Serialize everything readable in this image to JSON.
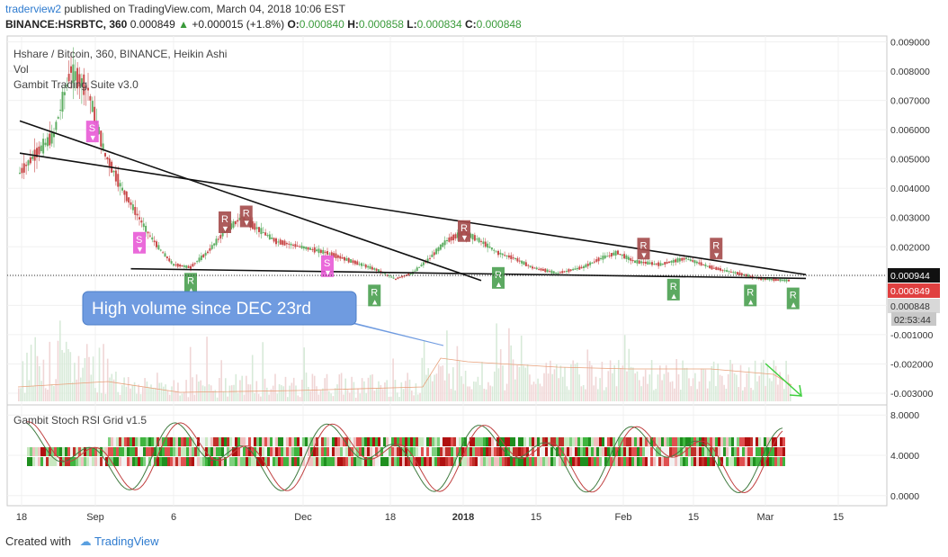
{
  "header": {
    "user": "traderview2",
    "published": "published on TradingView.com, March 04, 2018 10:06 EST",
    "symbol": "BINANCE:HSRBTC, 360",
    "change_price": "0.000849",
    "change_value": "+0.000015 (+1.8%)",
    "o_label": "O:",
    "o": "0.000840",
    "h_label": "H:",
    "h": "0.000858",
    "l_label": "L:",
    "l": "0.000834",
    "c_label": "C:",
    "c": "0.000848"
  },
  "legend": {
    "line1": "Hshare / Bitcoin, 360, BINANCE, Heikin Ashi",
    "line2": "Vol",
    "line3": "Gambit Trading Suite v3.0",
    "stoch": "Gambit Stoch RSI Grid v1.5"
  },
  "annotation": {
    "text": "High volume since DEC 23rd"
  },
  "footer": {
    "created": "Created with",
    "brand": "TradingView"
  },
  "colors": {
    "up": "#5fae63",
    "down": "#c94a4a",
    "pink": "#e85ad6",
    "badge_up": "#4aa050",
    "badge_down": "#a44a4a",
    "callout": "#6f9be0"
  },
  "chart_data": [
    {
      "type": "candlestick",
      "title": "Hshare / Bitcoin, 360, BINANCE, Heikin Ashi",
      "y_ticks": [
        "0.009000",
        "0.008000",
        "0.007000",
        "0.006000",
        "0.005000",
        "0.004000",
        "0.003000",
        "0.002000",
        "0.000944",
        "0.000849",
        "0.000848",
        "-0.001000",
        "-0.002000",
        "-0.003000"
      ],
      "x_ticks": [
        "18",
        "Sep",
        "6",
        "Dec",
        "18",
        "2018",
        "15",
        "Feb",
        "15",
        "Mar",
        "15"
      ],
      "countdown": "02:53:44",
      "ylim": [
        -0.0034,
        0.0091
      ],
      "price_path": [
        [
          0,
          0.0045
        ],
        [
          4,
          0.0052
        ],
        [
          8,
          0.0058
        ],
        [
          12,
          0.008
        ],
        [
          16,
          0.0074
        ],
        [
          20,
          0.0052
        ],
        [
          24,
          0.004
        ],
        [
          28,
          0.003
        ],
        [
          30,
          0.0025
        ],
        [
          33,
          0.0019
        ],
        [
          36,
          0.0014
        ],
        [
          40,
          0.0013
        ],
        [
          44,
          0.0018
        ],
        [
          48,
          0.0025
        ],
        [
          52,
          0.003
        ],
        [
          56,
          0.0026
        ],
        [
          60,
          0.0022
        ],
        [
          66,
          0.002
        ],
        [
          72,
          0.0018
        ],
        [
          78,
          0.0015
        ],
        [
          84,
          0.0012
        ],
        [
          88,
          0.0009
        ],
        [
          92,
          0.0011
        ],
        [
          96,
          0.0016
        ],
        [
          100,
          0.0022
        ],
        [
          104,
          0.0025
        ],
        [
          108,
          0.0022
        ],
        [
          112,
          0.0018
        ],
        [
          116,
          0.0016
        ],
        [
          120,
          0.0013
        ],
        [
          126,
          0.0011
        ],
        [
          132,
          0.0013
        ],
        [
          136,
          0.0016
        ],
        [
          140,
          0.0018
        ],
        [
          144,
          0.0015
        ],
        [
          150,
          0.0014
        ],
        [
          156,
          0.0016
        ],
        [
          162,
          0.0013
        ],
        [
          168,
          0.0011
        ],
        [
          174,
          0.0009
        ],
        [
          180,
          0.00085
        ]
      ],
      "trendlines": [
        {
          "x1": 0,
          "y1": 0.0063,
          "x2": 108,
          "y2": 0.00085
        },
        {
          "x1": 0,
          "y1": 0.0052,
          "x2": 184,
          "y2": 0.00105
        },
        {
          "x1": 26,
          "y1": 0.00125,
          "x2": 184,
          "y2": 0.00092
        }
      ],
      "signals": [
        {
          "t": 17,
          "p": 0.006,
          "label": "S",
          "kind": "pink"
        },
        {
          "t": 28,
          "p": 0.0022,
          "label": "S",
          "kind": "pink"
        },
        {
          "t": 72,
          "p": 0.0014,
          "label": "S",
          "kind": "pink"
        },
        {
          "t": 48,
          "p": 0.0029,
          "label": "R",
          "kind": "down"
        },
        {
          "t": 53,
          "p": 0.0031,
          "label": "R",
          "kind": "down"
        },
        {
          "t": 104,
          "p": 0.0026,
          "label": "R",
          "kind": "down"
        },
        {
          "t": 146,
          "p": 0.002,
          "label": "R",
          "kind": "down"
        },
        {
          "t": 163,
          "p": 0.002,
          "label": "R",
          "kind": "down"
        },
        {
          "t": 40,
          "p": 0.0008,
          "label": "R",
          "kind": "up"
        },
        {
          "t": 83,
          "p": 0.0004,
          "label": "R",
          "kind": "up"
        },
        {
          "t": 112,
          "p": 0.001,
          "label": "R",
          "kind": "up"
        },
        {
          "t": 153,
          "p": 0.0006,
          "label": "R",
          "kind": "up"
        },
        {
          "t": 171,
          "p": 0.0004,
          "label": "R",
          "kind": "up"
        },
        {
          "t": 181,
          "p": 0.0003,
          "label": "R",
          "kind": "up"
        }
      ]
    },
    {
      "type": "heatmap",
      "title": "Gambit Stoch RSI Grid v1.5",
      "y_ticks": [
        "8.0000",
        "4.0000",
        "0.0000"
      ],
      "ylim": [
        -1,
        9
      ]
    }
  ]
}
